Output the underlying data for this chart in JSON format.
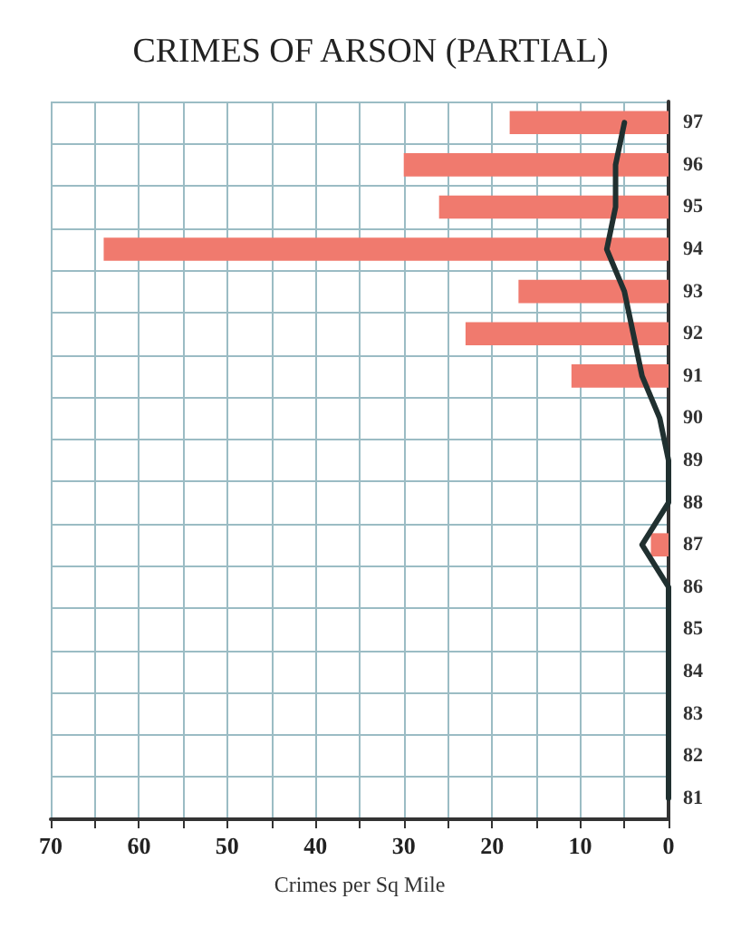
{
  "chart_data": {
    "type": "bar",
    "orientation": "horizontal",
    "title": "CRIMES OF ARSON (PARTIAL)",
    "xlabel": "Crimes per Sq Mile",
    "categories": [
      "97",
      "96",
      "95",
      "94",
      "93",
      "92",
      "91",
      "90",
      "89",
      "88",
      "87",
      "86",
      "85",
      "84",
      "83",
      "82",
      "81"
    ],
    "series": [
      {
        "color": "#f07a6e",
        "values": [
          18,
          30,
          26,
          64,
          17,
          23,
          11,
          0,
          0,
          0,
          2,
          0,
          0,
          0,
          0,
          0,
          0
        ]
      },
      {
        "type": "line",
        "color": "#203030",
        "values": [
          5,
          6,
          6,
          7,
          5,
          4,
          3,
          1,
          0,
          0,
          3,
          0,
          0,
          0,
          0,
          0,
          0
        ]
      }
    ],
    "xlim": [
      70,
      0
    ],
    "xticks": [
      70,
      {
        "value": 65,
        "label": null
      },
      60,
      {
        "value": 55,
        "label": null
      },
      50,
      {
        "value": 45,
        "label": null
      },
      40,
      {
        "value": 35,
        "label": null
      },
      30,
      {
        "value": 25,
        "label": null
      },
      20,
      {
        "value": 15,
        "label": null
      },
      10,
      {
        "value": 5,
        "label": null
      },
      0
    ],
    "grid": true,
    "marker": "none",
    "line_style": "solid"
  }
}
